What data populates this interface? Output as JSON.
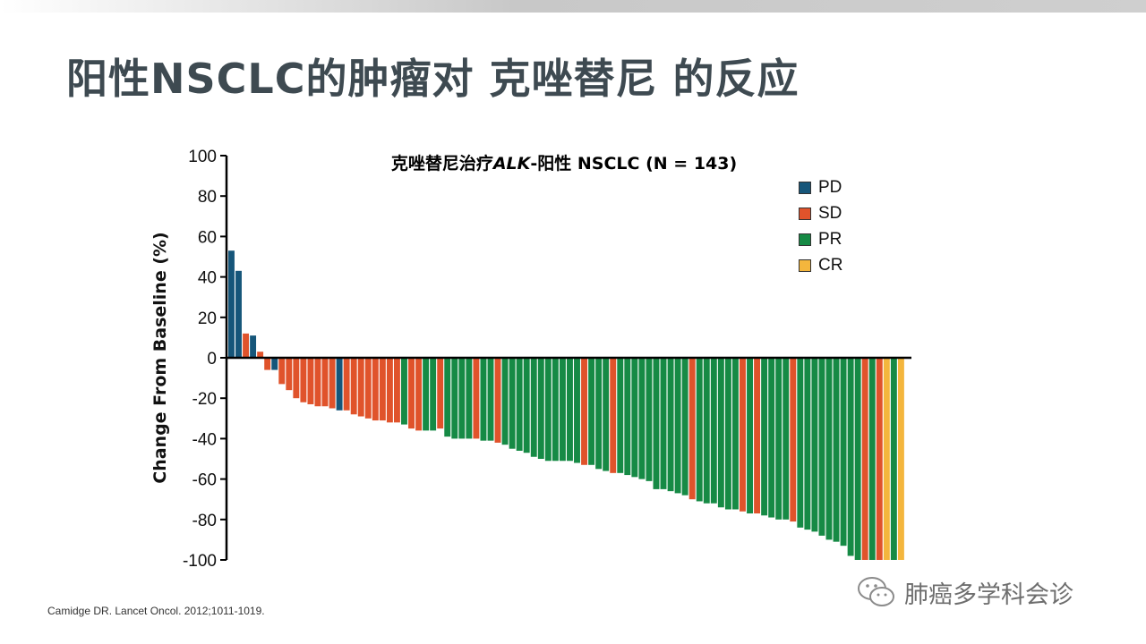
{
  "slide": {
    "title": "阳性NSCLC的肿瘤对 克唑替尼 的反应",
    "citation": "Camidge DR. Lancet Oncol. 2012;1011-1019.",
    "watermark": "肺癌多学科会诊"
  },
  "chart_data": {
    "type": "bar",
    "title_parts": [
      "克唑替尼治疗",
      "ALK",
      "-阳性 NSCLC (N = 143)"
    ],
    "ylabel": "Change From Baseline (%)",
    "xlabel": "",
    "ylim": [
      -100,
      100
    ],
    "yticks": [
      100,
      80,
      60,
      40,
      20,
      0,
      -20,
      -40,
      -60,
      -80,
      -100
    ],
    "grid": false,
    "legend_position": "top-right",
    "legend": [
      {
        "key": "PD",
        "label": "PD",
        "color": "#16567a"
      },
      {
        "key": "SD",
        "label": "SD",
        "color": "#e0532b"
      },
      {
        "key": "PR",
        "label": "PR",
        "color": "#168a45"
      },
      {
        "key": "CR",
        "label": "CR",
        "color": "#f4b63d"
      }
    ],
    "bars": [
      {
        "v": 53,
        "c": "PD"
      },
      {
        "v": 43,
        "c": "PD"
      },
      {
        "v": 12,
        "c": "SD"
      },
      {
        "v": 11,
        "c": "PD"
      },
      {
        "v": 3,
        "c": "SD"
      },
      {
        "v": -6,
        "c": "SD"
      },
      {
        "v": -6,
        "c": "PD"
      },
      {
        "v": -13,
        "c": "SD"
      },
      {
        "v": -16,
        "c": "SD"
      },
      {
        "v": -20,
        "c": "SD"
      },
      {
        "v": -22,
        "c": "SD"
      },
      {
        "v": -23,
        "c": "SD"
      },
      {
        "v": -24,
        "c": "SD"
      },
      {
        "v": -24,
        "c": "SD"
      },
      {
        "v": -25,
        "c": "SD"
      },
      {
        "v": -26,
        "c": "PD"
      },
      {
        "v": -26,
        "c": "SD"
      },
      {
        "v": -28,
        "c": "SD"
      },
      {
        "v": -29,
        "c": "SD"
      },
      {
        "v": -30,
        "c": "SD"
      },
      {
        "v": -31,
        "c": "SD"
      },
      {
        "v": -31,
        "c": "SD"
      },
      {
        "v": -32,
        "c": "SD"
      },
      {
        "v": -32,
        "c": "SD"
      },
      {
        "v": -33,
        "c": "PR"
      },
      {
        "v": -35,
        "c": "SD"
      },
      {
        "v": -36,
        "c": "SD"
      },
      {
        "v": -36,
        "c": "PR"
      },
      {
        "v": -36,
        "c": "PR"
      },
      {
        "v": -35,
        "c": "SD"
      },
      {
        "v": -39,
        "c": "PR"
      },
      {
        "v": -40,
        "c": "PR"
      },
      {
        "v": -40,
        "c": "PR"
      },
      {
        "v": -40,
        "c": "PR"
      },
      {
        "v": -40,
        "c": "SD"
      },
      {
        "v": -41,
        "c": "PR"
      },
      {
        "v": -41,
        "c": "PR"
      },
      {
        "v": -42,
        "c": "SD"
      },
      {
        "v": -43,
        "c": "PR"
      },
      {
        "v": -45,
        "c": "PR"
      },
      {
        "v": -46,
        "c": "PR"
      },
      {
        "v": -47,
        "c": "PR"
      },
      {
        "v": -49,
        "c": "PR"
      },
      {
        "v": -50,
        "c": "PR"
      },
      {
        "v": -51,
        "c": "PR"
      },
      {
        "v": -51,
        "c": "PR"
      },
      {
        "v": -51,
        "c": "PR"
      },
      {
        "v": -51,
        "c": "PR"
      },
      {
        "v": -52,
        "c": "PR"
      },
      {
        "v": -53,
        "c": "SD"
      },
      {
        "v": -53,
        "c": "PR"
      },
      {
        "v": -55,
        "c": "PR"
      },
      {
        "v": -56,
        "c": "PR"
      },
      {
        "v": -57,
        "c": "SD"
      },
      {
        "v": -57,
        "c": "PR"
      },
      {
        "v": -58,
        "c": "PR"
      },
      {
        "v": -59,
        "c": "PR"
      },
      {
        "v": -60,
        "c": "PR"
      },
      {
        "v": -61,
        "c": "PR"
      },
      {
        "v": -65,
        "c": "PR"
      },
      {
        "v": -65,
        "c": "PR"
      },
      {
        "v": -66,
        "c": "PR"
      },
      {
        "v": -67,
        "c": "PR"
      },
      {
        "v": -68,
        "c": "PR"
      },
      {
        "v": -70,
        "c": "SD"
      },
      {
        "v": -71,
        "c": "PR"
      },
      {
        "v": -72,
        "c": "PR"
      },
      {
        "v": -72,
        "c": "PR"
      },
      {
        "v": -74,
        "c": "PR"
      },
      {
        "v": -75,
        "c": "PR"
      },
      {
        "v": -75,
        "c": "PR"
      },
      {
        "v": -76,
        "c": "SD"
      },
      {
        "v": -77,
        "c": "PR"
      },
      {
        "v": -77,
        "c": "SD"
      },
      {
        "v": -78,
        "c": "PR"
      },
      {
        "v": -79,
        "c": "PR"
      },
      {
        "v": -80,
        "c": "PR"
      },
      {
        "v": -80,
        "c": "PR"
      },
      {
        "v": -81,
        "c": "SD"
      },
      {
        "v": -84,
        "c": "PR"
      },
      {
        "v": -85,
        "c": "PR"
      },
      {
        "v": -86,
        "c": "PR"
      },
      {
        "v": -88,
        "c": "PR"
      },
      {
        "v": -90,
        "c": "PR"
      },
      {
        "v": -91,
        "c": "PR"
      },
      {
        "v": -93,
        "c": "PR"
      },
      {
        "v": -98,
        "c": "PR"
      },
      {
        "v": -100,
        "c": "PR"
      },
      {
        "v": -100,
        "c": "SD"
      },
      {
        "v": -100,
        "c": "PR"
      },
      {
        "v": -100,
        "c": "SD"
      },
      {
        "v": -100,
        "c": "CR"
      },
      {
        "v": -100,
        "c": "PR"
      },
      {
        "v": -100,
        "c": "CR"
      }
    ]
  }
}
